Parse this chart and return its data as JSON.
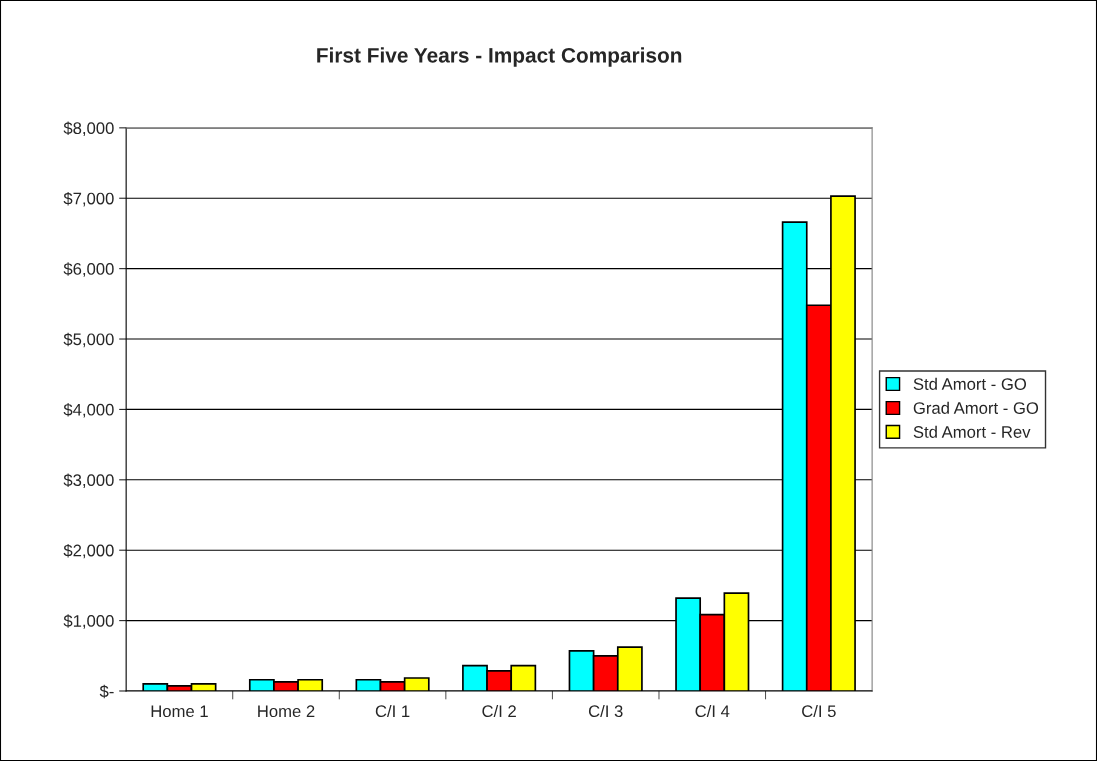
{
  "chart_data": {
    "type": "bar",
    "title": "First Five Years - Impact Comparison",
    "categories": [
      "Home 1",
      "Home 2",
      "C/I 1",
      "C/I 2",
      "C/I 3",
      "C/I 4",
      "C/I 5"
    ],
    "series": [
      {
        "name": "Std Amort - GO",
        "color": "#00ffff",
        "values": [
          100,
          160,
          160,
          360,
          570,
          1320,
          6660
        ]
      },
      {
        "name": "Grad Amort - GO",
        "color": "#ff0000",
        "values": [
          73,
          130,
          130,
          285,
          500,
          1086,
          5480
        ]
      },
      {
        "name": "Std Amort - Rev",
        "color": "#ffff00",
        "values": [
          100,
          160,
          185,
          360,
          623,
          1391,
          7030
        ]
      }
    ],
    "ylim": [
      0,
      8000
    ],
    "yticks": [
      {
        "value": 0,
        "label": "$-"
      },
      {
        "value": 1000,
        "label": "$1,000"
      },
      {
        "value": 2000,
        "label": "$2,000"
      },
      {
        "value": 3000,
        "label": "$3,000"
      },
      {
        "value": 4000,
        "label": "$4,000"
      },
      {
        "value": 5000,
        "label": "$5,000"
      },
      {
        "value": 6000,
        "label": "$6,000"
      },
      {
        "value": 7000,
        "label": "$7,000"
      },
      {
        "value": 8000,
        "label": "$8,000"
      }
    ],
    "grid": "y",
    "legend": "right"
  }
}
